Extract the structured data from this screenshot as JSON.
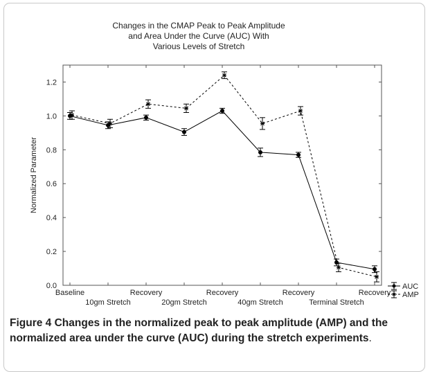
{
  "chart_data": {
    "type": "line",
    "title": [
      "Changes in the CMAP Peak to Peak Amplitude",
      "and Area Under the Curve (AUC) With",
      "Various Levels of Stretch"
    ],
    "ylabel": "Normalized Parameter",
    "ylim": [
      0.0,
      1.3
    ],
    "yticks": [
      0.0,
      0.2,
      0.4,
      0.6,
      0.8,
      1.0,
      1.2
    ],
    "categories": [
      "Baseline",
      "10gm Stretch",
      "Recovery",
      "20gm Stretch",
      "Recovery",
      "40gm Stretch",
      "Recovery",
      "Terminal Stretch",
      "Recovery"
    ],
    "series": [
      {
        "name": "AUC",
        "values": [
          1.0,
          0.945,
          0.99,
          0.905,
          1.03,
          0.785,
          0.77,
          0.135,
          0.095
        ],
        "errors": [
          0.02,
          0.02,
          0.015,
          0.02,
          0.015,
          0.025,
          0.015,
          0.02,
          0.02
        ],
        "color": "#000000",
        "style": "solid"
      },
      {
        "name": "AMP",
        "values": [
          1.005,
          0.955,
          1.07,
          1.045,
          1.24,
          0.955,
          1.03,
          0.105,
          0.05
        ],
        "errors": [
          0.025,
          0.025,
          0.025,
          0.025,
          0.02,
          0.035,
          0.025,
          0.025,
          0.03
        ],
        "color": "#000000",
        "style": "dashed"
      }
    ],
    "grid": false,
    "legend": "bottom-right"
  },
  "caption": {
    "label": "Figure 4",
    "bold_text": "Changes in the normalized peak to peak amplitude (AMP) and the normalized area under the curve (AUC) during the stretch experiments",
    "tail": "."
  }
}
